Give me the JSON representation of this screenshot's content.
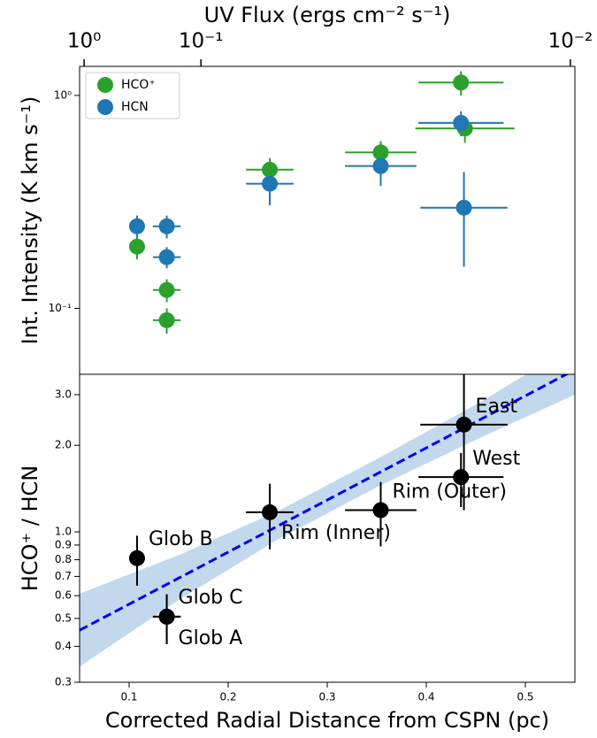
{
  "chart_data": [
    {
      "type": "scatter",
      "x2label": "UV Flux (ergs cm⁻² s⁻¹)",
      "x2scale": "inverse-square",
      "x2lim": [
        1.19,
        0.0098
      ],
      "x2ticks": [
        {
          "value": 1,
          "label": "10⁰"
        },
        {
          "value": 0.1,
          "label": "10⁻¹"
        },
        {
          "value": 0.01,
          "label": "10⁻²"
        }
      ],
      "xlim": [
        0.05,
        0.55
      ],
      "ylabel": "Int. Intensity (K km s⁻¹)",
      "yscale": "log",
      "ylim": [
        0.049,
        1.37
      ],
      "yticks": [
        {
          "value": 0.1,
          "label": "10⁻¹"
        },
        {
          "value": 1,
          "label": "10⁰"
        }
      ],
      "legend": "upper left",
      "series": [
        {
          "name": "HCO⁺",
          "color": "#2ca02c",
          "x": [
            0.108,
            0.138,
            0.138,
            0.242,
            0.354,
            0.435,
            0.439
          ],
          "values": [
            0.195,
            0.122,
            0.088,
            0.448,
            0.54,
            1.15,
            0.7
          ],
          "xerr": [
            0.007,
            0.014,
            0.014,
            0.024,
            0.036,
            0.043,
            0.05
          ],
          "yerr": [
            0.025,
            0.015,
            0.012,
            0.06,
            0.07,
            0.15,
            0.1
          ]
        },
        {
          "name": "HCN",
          "color": "#1f77b4",
          "x": [
            0.108,
            0.138,
            0.138,
            0.242,
            0.354,
            0.435,
            0.438
          ],
          "values": [
            0.243,
            0.243,
            0.174,
            0.385,
            0.466,
            0.743,
            0.297
          ],
          "xerr": [
            0.007,
            0.014,
            0.014,
            0.024,
            0.036,
            0.043,
            0.044
          ],
          "yerr": [
            0.03,
            0.03,
            0.02,
            0.08,
            0.09,
            0.1,
            0.14
          ]
        }
      ]
    },
    {
      "type": "scatter",
      "xlabel": "Corrected Radial Distance from CSPN (pc)",
      "xlim": [
        0.05,
        0.55
      ],
      "xticks": [
        0.1,
        0.2,
        0.3,
        0.4,
        0.5
      ],
      "ylabel": "HCO⁺ / HCN",
      "yscale": "log",
      "ylim": [
        0.3,
        3.53
      ],
      "yticks": [
        0.3,
        0.4,
        0.5,
        0.6,
        0.7,
        0.8,
        0.9,
        {
          "value": 1,
          "label": "1.0"
        },
        {
          "value": 2,
          "label": "2.0"
        },
        {
          "value": 3,
          "label": "3.0"
        }
      ],
      "color": "#000000",
      "labels": [
        "Glob B",
        "Glob C",
        "Glob A",
        "Rim (Inner)",
        "Rim (Outer)",
        "West",
        "East"
      ],
      "x": [
        0.108,
        0.138,
        0.138,
        0.242,
        0.354,
        0.435,
        0.438
      ],
      "values": [
        0.81,
        0.507,
        0.507,
        1.17,
        1.19,
        1.55,
        2.36
      ],
      "xerr": [
        0.006,
        0.014,
        0.014,
        0.024,
        0.036,
        0.043,
        0.044
      ],
      "yerr": [
        0.16,
        0.1,
        0.1,
        0.3,
        0.3,
        0.33,
        1.17
      ],
      "fit": {
        "color": "#0000ee",
        "x": [
          0.05,
          0.55
        ],
        "values": [
          0.455,
          3.66
        ]
      },
      "band": {
        "color": "#c2d8ec",
        "x": [
          0.05,
          0.15,
          0.25,
          0.35,
          0.45,
          0.55
        ],
        "lower": [
          0.34,
          0.58,
          0.94,
          1.43,
          2.09,
          3.0
        ],
        "upper": [
          0.61,
          0.83,
          1.18,
          1.79,
          2.77,
          4.46
        ]
      }
    }
  ]
}
